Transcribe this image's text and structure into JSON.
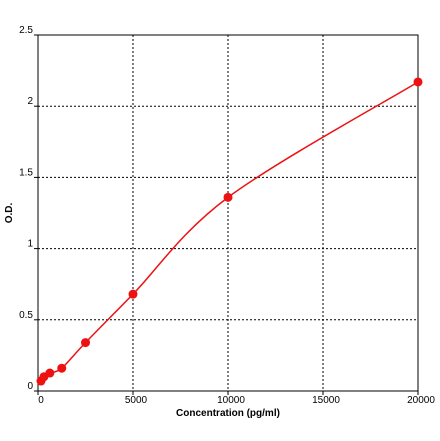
{
  "chart_data": {
    "type": "line",
    "x_label": "Concentration (pg/ml)",
    "y_label": "O.D.",
    "x": [
      156,
      312,
      625,
      1250,
      2500,
      5000,
      10000,
      20000
    ],
    "series": [
      {
        "color": "#ee1111",
        "values": [
          0.07,
          0.1,
          0.126,
          0.16,
          0.34,
          0.68,
          1.36,
          2.17
        ]
      }
    ],
    "xlim": [
      0,
      20000
    ],
    "xticks": [
      0,
      5000,
      10000,
      15000,
      20000
    ],
    "ylim": [
      0,
      2.5
    ],
    "yticks": [
      0,
      0.5,
      1,
      1.5,
      2,
      2.5
    ],
    "grid": true
  }
}
